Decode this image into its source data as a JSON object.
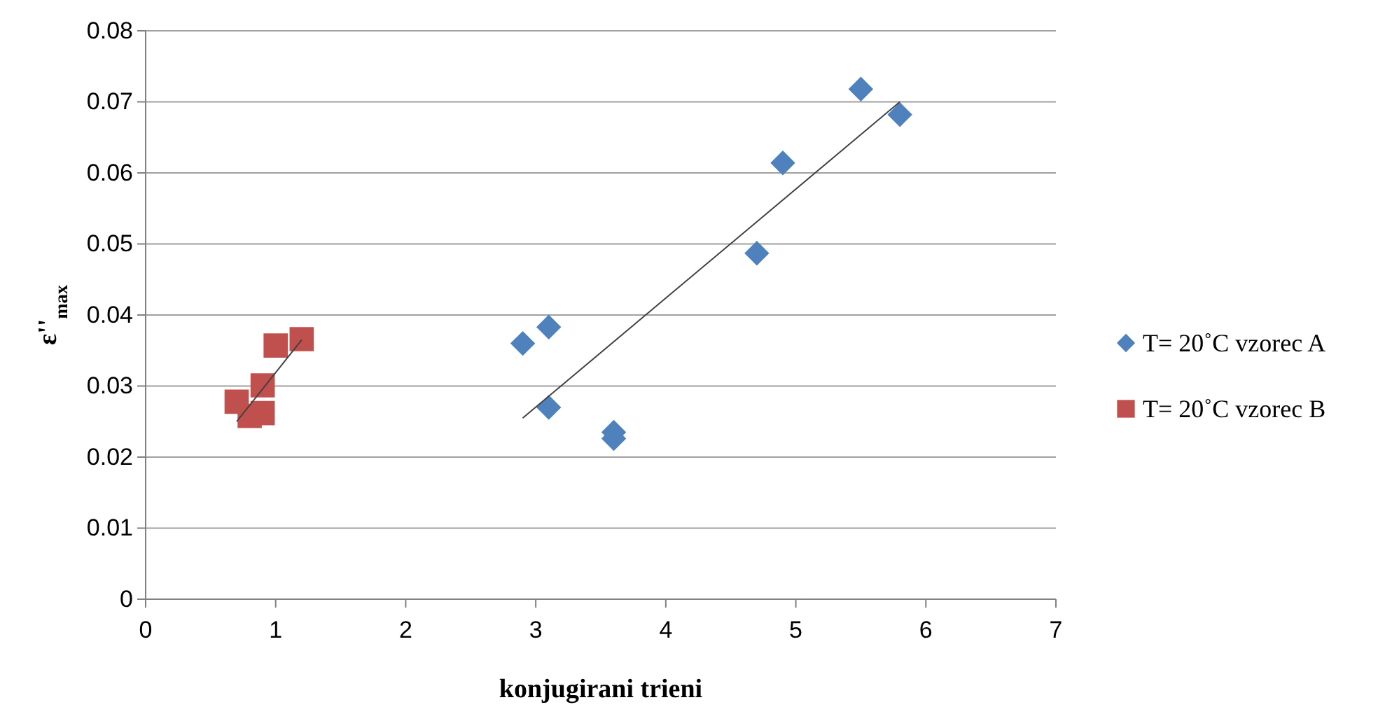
{
  "chart_data": {
    "type": "scatter",
    "xlabel": "konjugirani trieni",
    "ylabel": "ε''$_{max}$",
    "xlim": [
      0,
      7
    ],
    "xticks": [
      0,
      1,
      2,
      3,
      4,
      5,
      6,
      7
    ],
    "ylim": [
      0,
      0.08
    ],
    "yticks": [
      0,
      0.01,
      0.02,
      0.03,
      0.04,
      0.05,
      0.06,
      0.07,
      0.08
    ],
    "grid": "y",
    "legend": "right",
    "series": [
      {
        "name": "T= 20˚C vzorec A",
        "color": "#4f81bd",
        "marker": "diamond",
        "x": [
          2.9,
          3.1,
          3.1,
          3.6,
          3.6,
          4.7,
          4.9,
          5.5,
          5.8
        ],
        "values": [
          0.036,
          0.0383,
          0.027,
          0.0235,
          0.0226,
          0.0487,
          0.0614,
          0.0718,
          0.0682
        ]
      },
      {
        "name": "T= 20˚C vzorec B",
        "color": "#c0504d",
        "marker": "square",
        "x": [
          0.7,
          0.8,
          0.9,
          0.9,
          1.0,
          1.2
        ],
        "values": [
          0.0278,
          0.0258,
          0.0301,
          0.0262,
          0.0357,
          0.0366
        ]
      },
      {
        "type": "line",
        "color": "#404040",
        "marker": "none",
        "x": [
          2.9,
          5.8
        ],
        "values": [
          0.0255,
          0.07
        ]
      },
      {
        "type": "line",
        "color": "#404040",
        "marker": "none",
        "x": [
          0.7,
          1.2
        ],
        "values": [
          0.025,
          0.0365
        ]
      }
    ]
  }
}
